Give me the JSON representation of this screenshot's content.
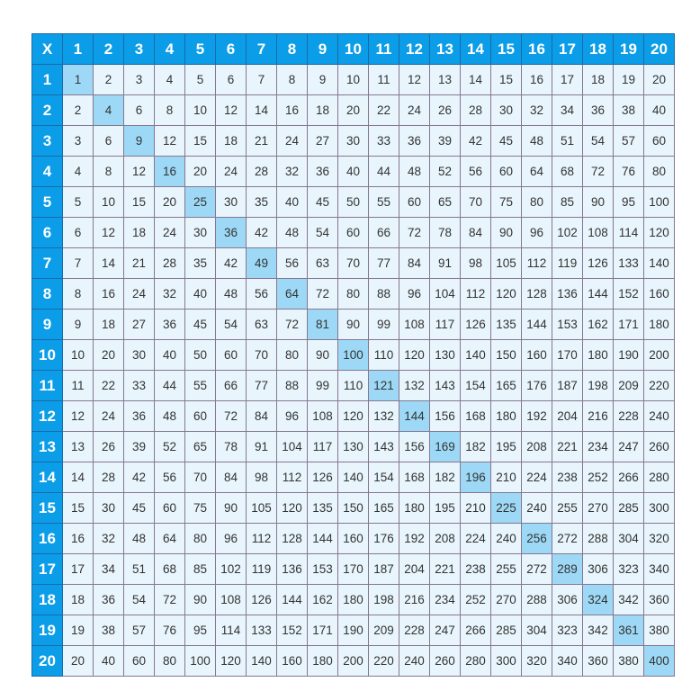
{
  "table": {
    "corner": "X",
    "colors": {
      "header_bg": "#0b9de8",
      "cell_bg": "#e8f5fc",
      "diagonal_bg": "#9dd9f6",
      "border": "#85778f"
    },
    "headers": [
      1,
      2,
      3,
      4,
      5,
      6,
      7,
      8,
      9,
      10,
      11,
      12,
      13,
      14,
      15,
      16,
      17,
      18,
      19,
      20
    ],
    "rows": [
      [
        1,
        2,
        3,
        4,
        5,
        6,
        7,
        8,
        9,
        10,
        11,
        12,
        13,
        14,
        15,
        16,
        17,
        18,
        19,
        20
      ],
      [
        2,
        4,
        6,
        8,
        10,
        12,
        14,
        16,
        18,
        20,
        22,
        24,
        26,
        28,
        30,
        32,
        34,
        36,
        38,
        40
      ],
      [
        3,
        6,
        9,
        12,
        15,
        18,
        21,
        24,
        27,
        30,
        33,
        36,
        39,
        42,
        45,
        48,
        51,
        54,
        57,
        60
      ],
      [
        4,
        8,
        12,
        16,
        20,
        24,
        28,
        32,
        36,
        40,
        44,
        48,
        52,
        56,
        60,
        64,
        68,
        72,
        76,
        80
      ],
      [
        5,
        10,
        15,
        20,
        25,
        30,
        35,
        40,
        45,
        50,
        55,
        60,
        65,
        70,
        75,
        80,
        85,
        90,
        95,
        100
      ],
      [
        6,
        12,
        18,
        24,
        30,
        36,
        42,
        48,
        54,
        60,
        66,
        72,
        78,
        84,
        90,
        96,
        102,
        108,
        114,
        120
      ],
      [
        7,
        14,
        21,
        28,
        35,
        42,
        49,
        56,
        63,
        70,
        77,
        84,
        91,
        98,
        105,
        112,
        119,
        126,
        133,
        140
      ],
      [
        8,
        16,
        24,
        32,
        40,
        48,
        56,
        64,
        72,
        80,
        88,
        96,
        104,
        112,
        120,
        128,
        136,
        144,
        152,
        160
      ],
      [
        9,
        18,
        27,
        36,
        45,
        54,
        63,
        72,
        81,
        90,
        99,
        108,
        117,
        126,
        135,
        144,
        153,
        162,
        171,
        180
      ],
      [
        10,
        20,
        30,
        40,
        50,
        60,
        70,
        80,
        90,
        100,
        110,
        120,
        130,
        140,
        150,
        160,
        170,
        180,
        190,
        200
      ],
      [
        11,
        22,
        33,
        44,
        55,
        66,
        77,
        88,
        99,
        110,
        121,
        132,
        143,
        154,
        165,
        176,
        187,
        198,
        209,
        220
      ],
      [
        12,
        24,
        36,
        48,
        60,
        72,
        84,
        96,
        108,
        120,
        132,
        144,
        156,
        168,
        180,
        192,
        204,
        216,
        228,
        240
      ],
      [
        13,
        26,
        39,
        52,
        65,
        78,
        91,
        104,
        117,
        130,
        143,
        156,
        169,
        182,
        195,
        208,
        221,
        234,
        247,
        260
      ],
      [
        14,
        28,
        42,
        56,
        70,
        84,
        98,
        112,
        126,
        140,
        154,
        168,
        182,
        196,
        210,
        224,
        238,
        252,
        266,
        280
      ],
      [
        15,
        30,
        45,
        60,
        75,
        90,
        105,
        120,
        135,
        150,
        165,
        180,
        195,
        210,
        225,
        240,
        255,
        270,
        285,
        300
      ],
      [
        16,
        32,
        48,
        64,
        80,
        96,
        112,
        128,
        144,
        160,
        176,
        192,
        208,
        224,
        240,
        256,
        272,
        288,
        304,
        320
      ],
      [
        17,
        34,
        51,
        68,
        85,
        102,
        119,
        136,
        153,
        170,
        187,
        204,
        221,
        238,
        255,
        272,
        289,
        306,
        323,
        340
      ],
      [
        18,
        36,
        54,
        72,
        90,
        108,
        126,
        144,
        162,
        180,
        198,
        216,
        234,
        252,
        270,
        288,
        306,
        324,
        342,
        360
      ],
      [
        19,
        38,
        57,
        76,
        95,
        114,
        133,
        152,
        171,
        190,
        209,
        228,
        247,
        266,
        285,
        304,
        323,
        342,
        361,
        380
      ],
      [
        20,
        40,
        60,
        80,
        100,
        120,
        140,
        160,
        180,
        200,
        220,
        240,
        260,
        280,
        300,
        320,
        340,
        360,
        380,
        400
      ]
    ]
  }
}
